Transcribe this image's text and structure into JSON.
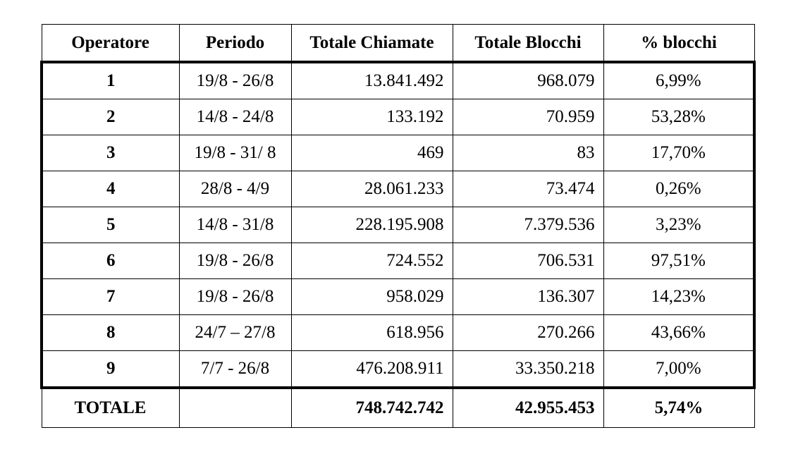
{
  "table": {
    "headers": [
      "Operatore",
      "Periodo",
      "Totale Chiamate",
      "Totale Blocchi",
      "% blocchi"
    ],
    "rows": [
      {
        "operatore": "1",
        "periodo": "19/8 - 26/8",
        "chiamate": "13.841.492",
        "blocchi": "968.079",
        "percent": "6,99%"
      },
      {
        "operatore": "2",
        "periodo": "14/8 - 24/8",
        "chiamate": "133.192",
        "blocchi": "70.959",
        "percent": "53,28%"
      },
      {
        "operatore": "3",
        "periodo": "19/8 - 31/ 8",
        "chiamate": "469",
        "blocchi": "83",
        "percent": "17,70%"
      },
      {
        "operatore": "4",
        "periodo": "28/8 - 4/9",
        "chiamate": "28.061.233",
        "blocchi": "73.474",
        "percent": "0,26%"
      },
      {
        "operatore": "5",
        "periodo": "14/8 - 31/8",
        "chiamate": "228.195.908",
        "blocchi": "7.379.536",
        "percent": "3,23%"
      },
      {
        "operatore": "6",
        "periodo": "19/8 - 26/8",
        "chiamate": "724.552",
        "blocchi": "706.531",
        "percent": "97,51%"
      },
      {
        "operatore": "7",
        "periodo": "19/8 - 26/8",
        "chiamate": "958.029",
        "blocchi": "136.307",
        "percent": "14,23%"
      },
      {
        "operatore": "8",
        "periodo": "24/7 – 27/8",
        "chiamate": "618.956",
        "blocchi": "270.266",
        "percent": "43,66%"
      },
      {
        "operatore": "9",
        "periodo": "7/7 - 26/8",
        "chiamate": "476.208.911",
        "blocchi": "33.350.218",
        "percent": "7,00%"
      }
    ],
    "total": {
      "label": "TOTALE",
      "periodo": "",
      "chiamate": "748.742.742",
      "blocchi": "42.955.453",
      "percent": "5,74%"
    }
  }
}
